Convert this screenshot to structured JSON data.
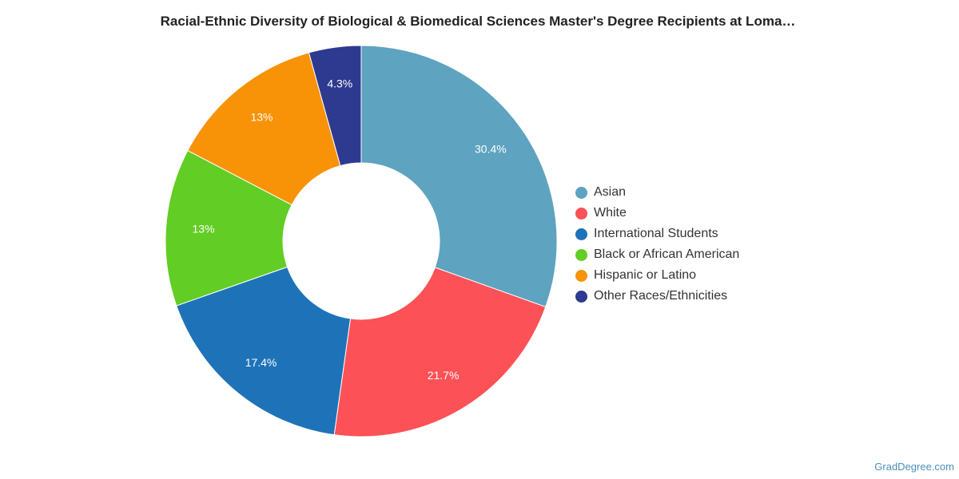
{
  "chart_data": {
    "type": "pie",
    "variant": "donut",
    "title": "Racial-Ethnic Diversity of Biological & Biomedical Sciences Master's Degree Recipients at Loma…",
    "legend_position": "right",
    "slices": [
      {
        "name": "Asian",
        "value": 30.4,
        "label": "30.4%",
        "color": "#5ea3c0"
      },
      {
        "name": "White",
        "value": 21.7,
        "label": "21.7%",
        "color": "#fc5156"
      },
      {
        "name": "International Students",
        "value": 17.4,
        "label": "17.4%",
        "color": "#1e73b8"
      },
      {
        "name": "Black or African American",
        "value": 13.0,
        "label": "13%",
        "color": "#62cd24"
      },
      {
        "name": "Hispanic or Latino",
        "value": 13.0,
        "label": "13%",
        "color": "#f89207"
      },
      {
        "name": "Other Races/Ethnicities",
        "value": 4.3,
        "label": "4.3%",
        "color": "#2e3a90"
      }
    ]
  },
  "watermark": "GradDegree.com"
}
